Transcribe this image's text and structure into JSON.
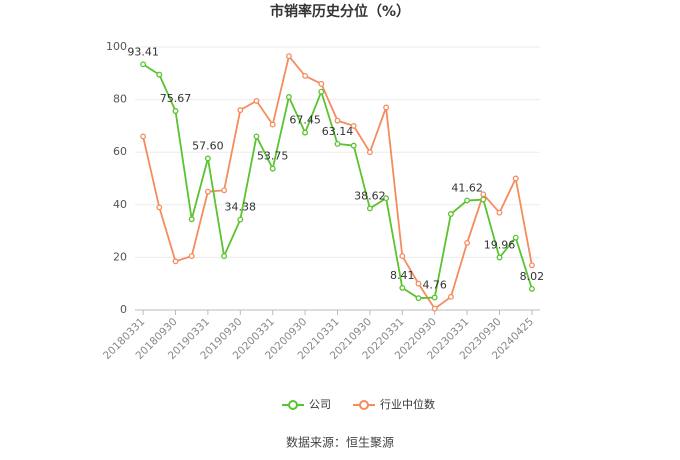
{
  "chart_data": {
    "type": "line",
    "title": "市销率历史分位（%）",
    "categories": [
      "20180331",
      null,
      "20180930",
      null,
      "20190331",
      null,
      "20190930",
      null,
      "20200331",
      null,
      "20200930",
      null,
      "20210331",
      null,
      "20210930",
      null,
      "20220331",
      null,
      "20220930",
      null,
      "20230331",
      null,
      "20230930",
      null,
      "20240425"
    ],
    "series": [
      {
        "name": "公司",
        "color": "#5ac32f",
        "values": [
          93.41,
          89.5,
          75.67,
          34.5,
          57.6,
          20.5,
          34.38,
          66,
          53.75,
          81,
          67.45,
          83,
          63.14,
          62.5,
          38.62,
          42.5,
          8.41,
          4.5,
          4.76,
          36.5,
          41.62,
          42,
          19.96,
          27.5,
          8.02
        ],
        "value_labels": [
          "93.41",
          null,
          "75.67",
          null,
          "57.60",
          null,
          "34.38",
          null,
          "53.75",
          null,
          "67.45",
          null,
          "63.14",
          null,
          "38.62",
          null,
          "8.41",
          null,
          "4.76",
          null,
          "41.62",
          null,
          "19.96",
          null,
          "8.02"
        ]
      },
      {
        "name": "行业中位数",
        "color": "#f58b5e",
        "values": [
          66,
          39,
          18.5,
          20.5,
          45,
          45.5,
          76,
          79.5,
          70.5,
          96.5,
          89,
          86,
          72,
          70,
          60,
          77,
          20.5,
          10,
          0.5,
          5,
          25.5,
          44,
          37,
          50,
          17
        ]
      }
    ],
    "ylim": [
      0,
      100
    ],
    "yticks": [
      0,
      20,
      40,
      60,
      80,
      100
    ],
    "grid": true,
    "legend": "bottom",
    "source": "数据来源：恒生聚源"
  }
}
